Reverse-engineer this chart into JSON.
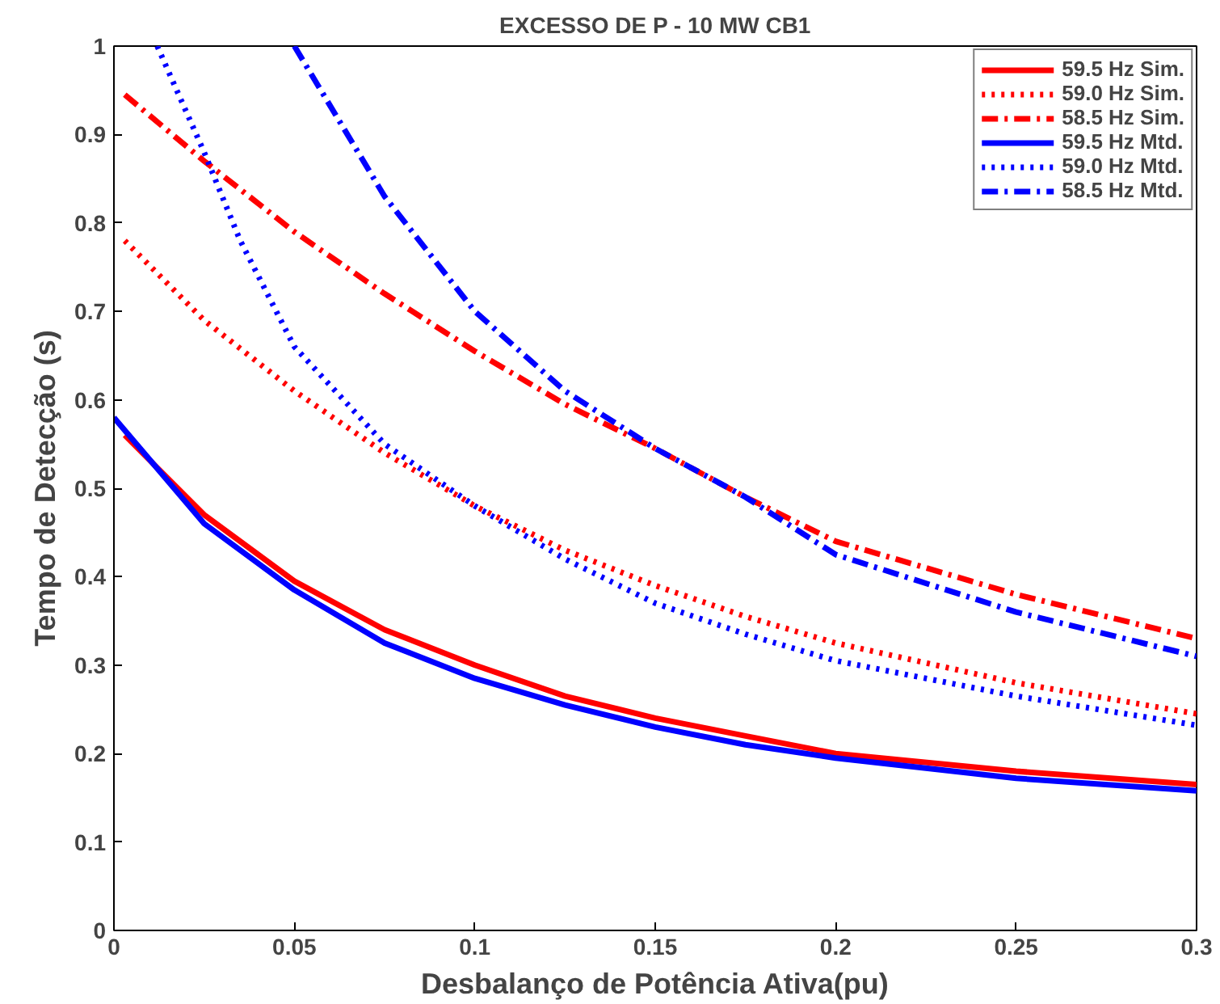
{
  "chart_data": {
    "type": "line",
    "title": "EXCESSO DE P - 10 MW CB1",
    "xlabel": "Desbalanço de Potência Ativa(pu)",
    "ylabel": "Tempo de Detecção (s)",
    "xlim": [
      0,
      0.3
    ],
    "ylim": [
      0,
      1
    ],
    "xticks": [
      0,
      0.05,
      0.1,
      0.15,
      0.2,
      0.25,
      0.3
    ],
    "yticks": [
      0,
      0.1,
      0.2,
      0.3,
      0.4,
      0.5,
      0.6,
      0.7,
      0.8,
      0.9,
      1
    ],
    "grid": false,
    "legend": "top right",
    "series": [
      {
        "name": "59.5 Hz Sim.",
        "color": "#ff0000",
        "line_style": "solid",
        "x": [
          0.003,
          0.025,
          0.05,
          0.075,
          0.1,
          0.125,
          0.15,
          0.175,
          0.2,
          0.25,
          0.3
        ],
        "values": [
          0.56,
          0.47,
          0.395,
          0.34,
          0.3,
          0.265,
          0.24,
          0.22,
          0.2,
          0.18,
          0.165
        ]
      },
      {
        "name": "59.0 Hz Sim.",
        "color": "#ff0000",
        "line_style": "dotted",
        "x": [
          0.003,
          0.025,
          0.05,
          0.075,
          0.1,
          0.125,
          0.15,
          0.175,
          0.2,
          0.25,
          0.3
        ],
        "values": [
          0.78,
          0.69,
          0.61,
          0.54,
          0.48,
          0.43,
          0.39,
          0.355,
          0.325,
          0.28,
          0.245
        ]
      },
      {
        "name": "58.5 Hz Sim.",
        "color": "#ff0000",
        "line_style": "dashdot",
        "x": [
          0.003,
          0.025,
          0.05,
          0.075,
          0.1,
          0.125,
          0.15,
          0.175,
          0.2,
          0.25,
          0.3
        ],
        "values": [
          0.945,
          0.87,
          0.79,
          0.72,
          0.655,
          0.595,
          0.545,
          0.49,
          0.44,
          0.38,
          0.33
        ]
      },
      {
        "name": "59.5 Hz Mtd.",
        "color": "#0000ff",
        "line_style": "solid",
        "x": [
          0,
          0.025,
          0.05,
          0.075,
          0.1,
          0.125,
          0.15,
          0.175,
          0.2,
          0.25,
          0.3
        ],
        "values": [
          0.58,
          0.46,
          0.385,
          0.325,
          0.285,
          0.255,
          0.23,
          0.21,
          0.195,
          0.172,
          0.158
        ]
      },
      {
        "name": "59.0 Hz Mtd.",
        "color": "#0000ff",
        "line_style": "dotted",
        "x": [
          0.012,
          0.025,
          0.035,
          0.05,
          0.075,
          0.1,
          0.125,
          0.15,
          0.175,
          0.2,
          0.25,
          0.3
        ],
        "values": [
          1.0,
          0.88,
          0.78,
          0.66,
          0.55,
          0.48,
          0.42,
          0.37,
          0.335,
          0.305,
          0.265,
          0.232
        ]
      },
      {
        "name": "58.5 Hz Mtd.",
        "color": "#0000ff",
        "line_style": "dashdot",
        "x": [
          0.05,
          0.075,
          0.1,
          0.125,
          0.15,
          0.175,
          0.2,
          0.25,
          0.3
        ],
        "values": [
          1.0,
          0.83,
          0.7,
          0.61,
          0.545,
          0.49,
          0.425,
          0.36,
          0.31
        ]
      }
    ]
  }
}
